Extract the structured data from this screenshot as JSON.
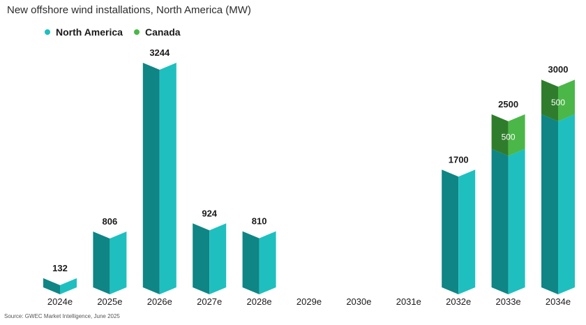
{
  "title": "New offshore wind installations, North America (MW)",
  "source": "Source: GWEC Market Intelligence, June 2025",
  "colors": {
    "na_front": "#1fbfbf",
    "na_side": "#0f8585",
    "ca_front": "#4bb748",
    "ca_side": "#2f7d2c"
  },
  "chart_data": {
    "type": "bar",
    "stacked": true,
    "title": "New offshore wind installations, North America (MW)",
    "xlabel": "",
    "ylabel": "",
    "ylim": [
      0,
      3300
    ],
    "grid": false,
    "legend_position": "top-left",
    "categories": [
      "2024e",
      "2025e",
      "2026e",
      "2027e",
      "2028e",
      "2029e",
      "2030e",
      "2031e",
      "2032e",
      "2033e",
      "2034e"
    ],
    "series": [
      {
        "name": "North America",
        "values": [
          132,
          806,
          3244,
          924,
          810,
          0,
          0,
          0,
          1700,
          2000,
          2500
        ]
      },
      {
        "name": "Canada",
        "values": [
          0,
          0,
          0,
          0,
          0,
          0,
          0,
          0,
          0,
          500,
          500
        ]
      }
    ],
    "totals": [
      132,
      806,
      3244,
      924,
      810,
      null,
      null,
      null,
      1700,
      2500,
      3000
    ],
    "segment_labels": [
      null,
      null,
      null,
      null,
      null,
      null,
      null,
      null,
      null,
      "500",
      "500"
    ]
  }
}
